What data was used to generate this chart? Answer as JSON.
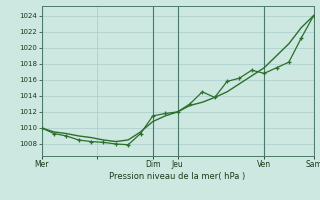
{
  "xlabel": "Pression niveau de la mer( hPa )",
  "bg_color": "#cce8e0",
  "grid_color": "#aacccc",
  "line_color_smooth": "#2d6e2d",
  "line_color_markers": "#2d6e2d",
  "vline_color": "#4a7a6a",
  "ylim": [
    1006.5,
    1025.2
  ],
  "yticks": [
    1008,
    1010,
    1012,
    1014,
    1016,
    1018,
    1020,
    1022,
    1024
  ],
  "xtick_positions": [
    0,
    4.5,
    9,
    11,
    18,
    22
  ],
  "xtick_labels": [
    "Mer",
    "",
    "Dim",
    "Jeu",
    "Ven",
    "Sam"
  ],
  "vline_positions": [
    0,
    9,
    11,
    18,
    22
  ],
  "num_points": 23,
  "smooth_x": [
    0,
    1,
    2,
    3,
    4,
    5,
    6,
    7,
    8,
    9,
    10,
    11,
    12,
    13,
    14,
    15,
    16,
    17,
    18,
    19,
    20,
    21,
    22
  ],
  "smooth_y": [
    1010.0,
    1009.5,
    1009.3,
    1009.0,
    1008.8,
    1008.5,
    1008.3,
    1008.5,
    1009.5,
    1010.8,
    1011.5,
    1012.0,
    1012.8,
    1013.2,
    1013.8,
    1014.5,
    1015.5,
    1016.5,
    1017.5,
    1019.0,
    1020.5,
    1022.5,
    1024.0
  ],
  "marker_x": [
    0,
    1,
    2,
    3,
    4,
    5,
    6,
    7,
    8,
    9,
    10,
    11,
    12,
    13,
    14,
    15,
    16,
    17,
    18,
    19,
    20,
    21,
    22
  ],
  "marker_y": [
    1010.0,
    1009.3,
    1009.0,
    1008.5,
    1008.3,
    1008.2,
    1008.0,
    1007.9,
    1009.3,
    1011.5,
    1011.8,
    1012.0,
    1013.0,
    1014.5,
    1013.8,
    1015.8,
    1016.2,
    1017.2,
    1016.8,
    1017.5,
    1018.2,
    1021.2,
    1024.0
  ],
  "xlim": [
    0,
    22
  ]
}
